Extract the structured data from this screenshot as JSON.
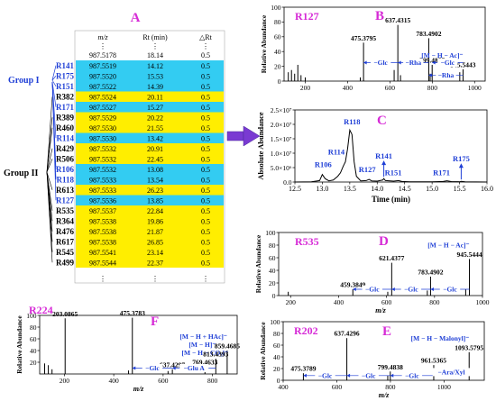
{
  "colors": {
    "panel_letter": "#d62ad6",
    "sample_label": "#d62ad6",
    "blue": "#1f3fd6",
    "cyan_row": "#33ccf2",
    "yellow_row": "#ffee00",
    "arrow": "#7a3ad2",
    "black": "#000000"
  },
  "panel_letters": {
    "A": "A",
    "B": "B",
    "C": "C",
    "D": "D",
    "E": "E",
    "F": "F"
  },
  "table": {
    "headers": {
      "mz": "m/z",
      "rt": "Rt (min)",
      "drt": "△Rt"
    },
    "dots": "⋮",
    "top_row": {
      "mz": "987.5178",
      "rt": "18.14",
      "drt": "0.5"
    },
    "rows": [
      {
        "id": "R141",
        "mz": "987.5519",
        "rt": "14.12",
        "drt": "0.5",
        "group": "I"
      },
      {
        "id": "R175",
        "mz": "987.5520",
        "rt": "15.53",
        "drt": "0.5",
        "group": "I"
      },
      {
        "id": "R151",
        "mz": "987.5522",
        "rt": "14.39",
        "drt": "0.5",
        "group": "I"
      },
      {
        "id": "R382",
        "mz": "987.5524",
        "rt": "20.11",
        "drt": "0.5",
        "group": "II"
      },
      {
        "id": "R171",
        "mz": "987.5527",
        "rt": "15.27",
        "drt": "0.5",
        "group": "I"
      },
      {
        "id": "R389",
        "mz": "987.5529",
        "rt": "20.22",
        "drt": "0.5",
        "group": "II"
      },
      {
        "id": "R460",
        "mz": "987.5530",
        "rt": "21.55",
        "drt": "0.5",
        "group": "II"
      },
      {
        "id": "R114",
        "mz": "987.5530",
        "rt": "13.42",
        "drt": "0.5",
        "group": "I"
      },
      {
        "id": "R429",
        "mz": "987.5532",
        "rt": "20.91",
        "drt": "0.5",
        "group": "II"
      },
      {
        "id": "R506",
        "mz": "987.5532",
        "rt": "22.45",
        "drt": "0.5",
        "group": "II"
      },
      {
        "id": "R106",
        "mz": "987.5532",
        "rt": "13.08",
        "drt": "0.5",
        "group": "I"
      },
      {
        "id": "R118",
        "mz": "987.5533",
        "rt": "13.54",
        "drt": "0.5",
        "group": "I"
      },
      {
        "id": "R613",
        "mz": "987.5533",
        "rt": "26.23",
        "drt": "0.5",
        "group": "II"
      },
      {
        "id": "R127",
        "mz": "987.5536",
        "rt": "13.85",
        "drt": "0.5",
        "group": "I"
      },
      {
        "id": "R535",
        "mz": "987.5537",
        "rt": "22.84",
        "drt": "0.5",
        "group": "II"
      },
      {
        "id": "R364",
        "mz": "987.5538",
        "rt": "19.86",
        "drt": "0.5",
        "group": "II"
      },
      {
        "id": "R476",
        "mz": "987.5538",
        "rt": "21.87",
        "drt": "0.5",
        "group": "II"
      },
      {
        "id": "R617",
        "mz": "987.5538",
        "rt": "26.85",
        "drt": "0.5",
        "group": "II"
      },
      {
        "id": "R545",
        "mz": "987.5541",
        "rt": "23.14",
        "drt": "0.5",
        "group": "II"
      },
      {
        "id": "R499",
        "mz": "987.5544",
        "rt": "22.37",
        "drt": "0.5",
        "group": "II"
      }
    ],
    "group_labels": {
      "I": "Group I",
      "II": "Group II"
    }
  },
  "chart_data": [
    {
      "panel": "B",
      "type": "bar",
      "sample": "R127",
      "ylabel": "Relative Abundance",
      "xlabel": "",
      "xlim": [
        100,
        1050
      ],
      "ylim": [
        0,
        100
      ],
      "yticks": [
        0,
        20,
        40,
        60,
        80,
        100
      ],
      "xticks": [
        200,
        400,
        600,
        800,
        1000
      ],
      "peaks": [
        [
          120,
          12
        ],
        [
          135,
          15
        ],
        [
          150,
          10
        ],
        [
          165,
          22
        ],
        [
          180,
          8
        ],
        [
          200,
          5
        ],
        [
          460,
          5
        ],
        [
          475.3795,
          52
        ],
        [
          620,
          15
        ],
        [
          637.4315,
          76
        ],
        [
          650,
          8
        ],
        [
          783.4902,
          58
        ],
        [
          790,
          10
        ],
        [
          799.4857,
          22
        ],
        [
          930,
          12
        ],
        [
          945.5443,
          16
        ]
      ],
      "peak_labels": [
        {
          "mz": 475.3795,
          "text": "475.3795",
          "color": "black"
        },
        {
          "mz": 637.4315,
          "text": "637.4315",
          "color": "black"
        },
        {
          "mz": 783.4902,
          "text": "783.4902",
          "color": "black"
        },
        {
          "mz": 799.4857,
          "text": "799.4857",
          "color": "black"
        },
        {
          "mz": 945.5443,
          "text": "945.5443",
          "color": "black"
        },
        {
          "mz": 945.5443,
          "text": "[M − H − Ac]⁻",
          "color": "blue"
        }
      ],
      "losses": [
        {
          "from": 475.3795,
          "to": 637.4315,
          "label": "Glc",
          "y": 25
        },
        {
          "from": 637.4315,
          "to": 783.4902,
          "label": "Rha",
          "y": 25
        },
        {
          "from": 799.4857,
          "to": 945.5443,
          "label": "Glc",
          "y": 25
        },
        {
          "from": 783.4902,
          "to": 945.5443,
          "label": "Rha",
          "y": 8
        }
      ]
    },
    {
      "panel": "C",
      "type": "line",
      "title": "",
      "ylabel": "Absolute Abundance",
      "xlabel": "Time (min)",
      "xlim": [
        12.5,
        16.0
      ],
      "ylim": [
        0,
        25000000
      ],
      "xticks": [
        12.5,
        13.0,
        13.5,
        14.0,
        14.5,
        15.0,
        15.5,
        16.0
      ],
      "ytick_labels": [
        "0.0",
        "5.0×10⁶",
        "1.0×10⁷",
        "1.5×10⁷",
        "2.0×10⁷",
        "2.5×10⁷"
      ],
      "yticks": [
        0,
        5000000,
        10000000,
        15000000,
        20000000,
        25000000
      ],
      "x": [
        12.5,
        12.8,
        12.95,
        13.0,
        13.05,
        13.12,
        13.2,
        13.28,
        13.33,
        13.38,
        13.42,
        13.46,
        13.5,
        13.54,
        13.58,
        13.62,
        13.7,
        13.8,
        13.85,
        13.9,
        14.0,
        14.1,
        14.12,
        14.15,
        14.3,
        14.39,
        14.45,
        14.6,
        15.0,
        15.2,
        15.27,
        15.35,
        15.5,
        15.53,
        15.6,
        16.0
      ],
      "y": [
        0,
        100000,
        500000,
        2600000,
        1200000,
        400000,
        700000,
        2000000,
        3200000,
        5500000,
        7000000,
        11500000,
        18000000,
        16500000,
        7000000,
        2000000,
        400000,
        500000,
        900000,
        400000,
        300000,
        700000,
        1200000,
        500000,
        300000,
        500000,
        200000,
        100000,
        100000,
        200000,
        450000,
        150000,
        100000,
        250000,
        100000,
        0
      ],
      "peak_labels": [
        {
          "name": "R106",
          "x": 13.08,
          "level": 2600000
        },
        {
          "name": "R114",
          "x": 13.42,
          "level": 7000000
        },
        {
          "name": "R118",
          "x": 13.54,
          "level": 18000000
        },
        {
          "name": "R127",
          "x": 13.85,
          "level": 900000
        },
        {
          "name": "R141",
          "x": 14.12,
          "level": 1200000
        },
        {
          "name": "R151",
          "x": 14.39,
          "level": 500000
        },
        {
          "name": "R171",
          "x": 15.27,
          "level": 450000
        },
        {
          "name": "R175",
          "x": 15.53,
          "level": 250000
        }
      ]
    },
    {
      "panel": "D",
      "type": "bar",
      "sample": "R535",
      "ylabel": "Relative Abundance",
      "xlabel": "m/z",
      "xlim": [
        150,
        1000
      ],
      "ylim": [
        0,
        100
      ],
      "yticks": [
        0,
        20,
        40,
        60,
        80,
        100
      ],
      "xticks": [
        200,
        400,
        600,
        800,
        1000
      ],
      "peaks": [
        [
          190,
          6
        ],
        [
          459.3849,
          10
        ],
        [
          605,
          6
        ],
        [
          621.4377,
          52
        ],
        [
          770,
          8
        ],
        [
          783.4902,
          30
        ],
        [
          930,
          10
        ],
        [
          945.5444,
          58
        ]
      ],
      "peak_labels": [
        {
          "mz": 459.3849,
          "text": "459.3849",
          "color": "black"
        },
        {
          "mz": 621.4377,
          "text": "621.4377",
          "color": "black"
        },
        {
          "mz": 783.4902,
          "text": "783.4902",
          "color": "black"
        },
        {
          "mz": 945.5444,
          "text": "945.5444",
          "color": "black"
        },
        {
          "mz": 945.5444,
          "text": "[M − H − Ac]⁻",
          "color": "blue"
        }
      ],
      "losses": [
        {
          "from": 459.3849,
          "to": 621.4377,
          "label": "Glc",
          "y": 10
        },
        {
          "from": 621.4377,
          "to": 783.4902,
          "label": "Glc",
          "y": 10
        },
        {
          "from": 783.4902,
          "to": 945.5444,
          "label": "Glc",
          "y": 10
        }
      ]
    },
    {
      "panel": "E",
      "type": "bar",
      "sample": "R202",
      "ylabel": "Relative Abundance",
      "xlabel": "m/z",
      "xlim": [
        400,
        1150
      ],
      "ylim": [
        0,
        100
      ],
      "yticks": [
        0,
        20,
        40,
        60,
        80,
        100
      ],
      "xticks": [
        400,
        600,
        800,
        1000
      ],
      "peaks": [
        [
          475.3789,
          12
        ],
        [
          637.4296,
          72
        ],
        [
          790,
          8
        ],
        [
          799.4838,
          15
        ],
        [
          961.5365,
          26
        ],
        [
          1093.5795,
          48
        ]
      ],
      "peak_labels": [
        {
          "mz": 475.3789,
          "text": "475.3789",
          "color": "black"
        },
        {
          "mz": 637.4296,
          "text": "637.4296",
          "color": "black"
        },
        {
          "mz": 799.4838,
          "text": "799.4838",
          "color": "black"
        },
        {
          "mz": 961.5365,
          "text": "961.5365",
          "color": "black"
        },
        {
          "mz": 1093.5795,
          "text": "1093.5795",
          "color": "black"
        },
        {
          "mz": 1093.5795,
          "text": "[M − H − Malonyl]⁻",
          "color": "blue"
        }
      ],
      "losses": [
        {
          "from": 475.3789,
          "to": 637.4296,
          "label": "Glc",
          "y": 8
        },
        {
          "from": 637.4296,
          "to": 799.4838,
          "label": "Glc",
          "y": 8
        },
        {
          "from": 799.4838,
          "to": 961.5365,
          "label": "Glc",
          "y": 8
        },
        {
          "from": 961.5365,
          "to": 1093.5795,
          "label": "Ara/Xyl",
          "y": 14
        }
      ]
    },
    {
      "panel": "F",
      "type": "bar",
      "sample": "R224",
      "ylabel": "Relative Abundance",
      "xlabel": "m/z",
      "xlim": [
        100,
        900
      ],
      "ylim": [
        0,
        100
      ],
      "yticks": [
        20,
        40,
        60,
        80,
        100
      ],
      "xticks": [
        200,
        400,
        600,
        800
      ],
      "peaks": [
        [
          120,
          18
        ],
        [
          135,
          15
        ],
        [
          150,
          8
        ],
        [
          203.0865,
          95
        ],
        [
          460,
          6
        ],
        [
          475.3783,
          96
        ],
        [
          620,
          5
        ],
        [
          637.4297,
          8
        ],
        [
          769.4633,
          12
        ],
        [
          813.4393,
          26
        ],
        [
          859.4685,
          40
        ]
      ],
      "peak_labels": [
        {
          "mz": 203.0865,
          "text": "203.0865",
          "color": "black"
        },
        {
          "mz": 475.3783,
          "text": "475.3783",
          "color": "black"
        },
        {
          "mz": 637.4297,
          "text": "637.4297",
          "color": "black"
        },
        {
          "mz": 769.4633,
          "text": "769.4633",
          "color": "black"
        },
        {
          "mz": 769.4633,
          "text": "[M − H − CO₂]⁻",
          "color": "blue"
        },
        {
          "mz": 813.4393,
          "text": "813.4393",
          "color": "black"
        },
        {
          "mz": 813.4393,
          "text": "[M − H]⁻",
          "color": "blue"
        },
        {
          "mz": 859.4685,
          "text": "859.4685",
          "color": "black"
        },
        {
          "mz": 859.4685,
          "text": "[M − H + HAc]⁻",
          "color": "blue"
        }
      ],
      "losses": [
        {
          "from": 475.3783,
          "to": 637.4297,
          "label": "Glc",
          "y": 10
        },
        {
          "from": 637.4297,
          "to": 813.4393,
          "label": "Glu A",
          "y": 10
        }
      ]
    }
  ]
}
